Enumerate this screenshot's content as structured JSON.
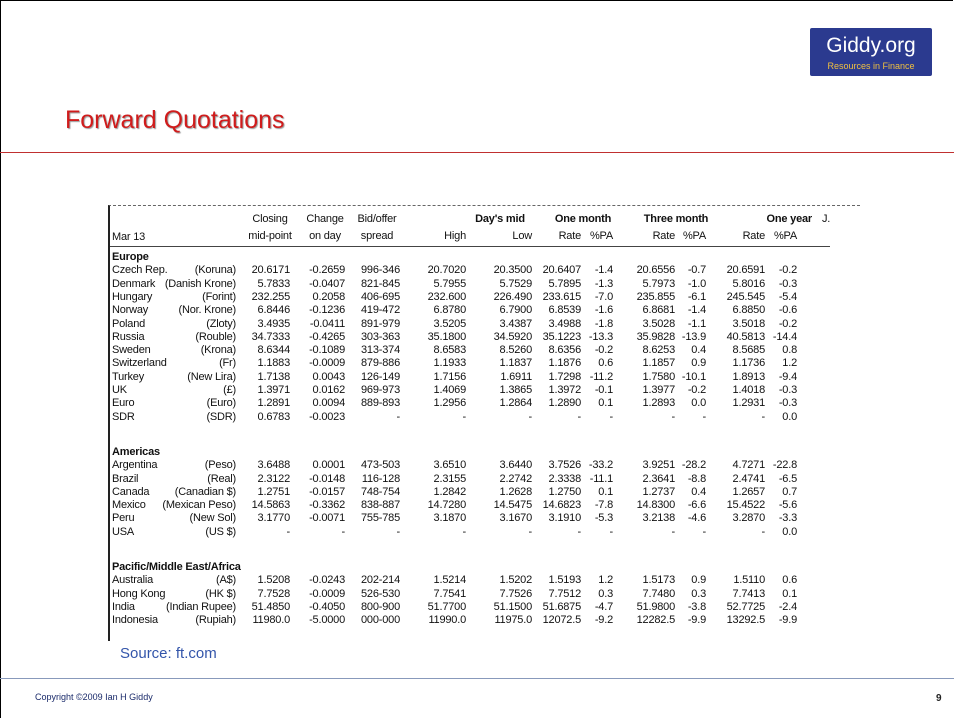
{
  "logo": {
    "name": "Giddy.org",
    "tagline": "Resources in Finance"
  },
  "title": "Forward Quotations",
  "table": {
    "date": "Mar 13",
    "header_top": [
      "Closing",
      "Change",
      "Bid/offer",
      "Day's mid",
      "One month",
      "Three month",
      "One year",
      "J."
    ],
    "header_bottom": [
      "mid-point",
      "on day",
      "spread",
      "High",
      "Low",
      "Rate",
      "%PA",
      "Rate",
      "%PA",
      "Rate",
      "%PA"
    ],
    "groups": [
      {
        "name": "Europe",
        "rows": [
          [
            "Czech Rep.",
            "(Koruna)",
            "20.6171",
            "-0.2659",
            "996-346",
            "20.7020",
            "20.3500",
            "20.6407",
            "-1.4",
            "20.6556",
            "-0.7",
            "20.6591",
            "-0.2"
          ],
          [
            "Denmark",
            "(Danish Krone)",
            "5.7833",
            "-0.0407",
            "821-845",
            "5.7955",
            "5.7529",
            "5.7895",
            "-1.3",
            "5.7973",
            "-1.0",
            "5.8016",
            "-0.3"
          ],
          [
            "Hungary",
            "(Forint)",
            "232.255",
            "0.2058",
            "406-695",
            "232.600",
            "226.490",
            "233.615",
            "-7.0",
            "235.855",
            "-6.1",
            "245.545",
            "-5.4"
          ],
          [
            "Norway",
            "(Nor. Krone)",
            "6.8446",
            "-0.1236",
            "419-472",
            "6.8780",
            "6.7900",
            "6.8539",
            "-1.6",
            "6.8681",
            "-1.4",
            "6.8850",
            "-0.6"
          ],
          [
            "Poland",
            "(Zloty)",
            "3.4935",
            "-0.0411",
            "891-979",
            "3.5205",
            "3.4387",
            "3.4988",
            "-1.8",
            "3.5028",
            "-1.1",
            "3.5018",
            "-0.2"
          ],
          [
            "Russia",
            "(Rouble)",
            "34.7333",
            "-0.4265",
            "303-363",
            "35.1800",
            "34.5920",
            "35.1223",
            "-13.3",
            "35.9828",
            "-13.9",
            "40.5813",
            "-14.4"
          ],
          [
            "Sweden",
            "(Krona)",
            "8.6344",
            "-0.1089",
            "313-374",
            "8.6583",
            "8.5260",
            "8.6356",
            "-0.2",
            "8.6253",
            "0.4",
            "8.5685",
            "0.8"
          ],
          [
            "Switzerland",
            "(Fr)",
            "1.1883",
            "-0.0009",
            "879-886",
            "1.1933",
            "1.1837",
            "1.1876",
            "0.6",
            "1.1857",
            "0.9",
            "1.1736",
            "1.2"
          ],
          [
            "Turkey",
            "(New Lira)",
            "1.7138",
            "0.0043",
            "126-149",
            "1.7156",
            "1.6911",
            "1.7298",
            "-11.2",
            "1.7580",
            "-10.1",
            "1.8913",
            "-9.4"
          ],
          [
            "UK",
            "(£)",
            "1.3971",
            "0.0162",
            "969-973",
            "1.4069",
            "1.3865",
            "1.3972",
            "-0.1",
            "1.3977",
            "-0.2",
            "1.4018",
            "-0.3"
          ],
          [
            "Euro",
            "(Euro)",
            "1.2891",
            "0.0094",
            "889-893",
            "1.2956",
            "1.2864",
            "1.2890",
            "0.1",
            "1.2893",
            "0.0",
            "1.2931",
            "-0.3"
          ],
          [
            "SDR",
            "(SDR)",
            "0.6783",
            "-0.0023",
            "-",
            "-",
            "-",
            "-",
            "-",
            "-",
            "-",
            "-",
            "0.0"
          ]
        ]
      },
      {
        "name": "Americas",
        "rows": [
          [
            "Argentina",
            "(Peso)",
            "3.6488",
            "0.0001",
            "473-503",
            "3.6510",
            "3.6440",
            "3.7526",
            "-33.2",
            "3.9251",
            "-28.2",
            "4.7271",
            "-22.8"
          ],
          [
            "Brazil",
            "(Real)",
            "2.3122",
            "-0.0148",
            "116-128",
            "2.3155",
            "2.2742",
            "2.3338",
            "-11.1",
            "2.3641",
            "-8.8",
            "2.4741",
            "-6.5"
          ],
          [
            "Canada",
            "(Canadian $)",
            "1.2751",
            "-0.0157",
            "748-754",
            "1.2842",
            "1.2628",
            "1.2750",
            "0.1",
            "1.2737",
            "0.4",
            "1.2657",
            "0.7"
          ],
          [
            "Mexico",
            "(Mexican Peso)",
            "14.5863",
            "-0.3362",
            "838-887",
            "14.7280",
            "14.5475",
            "14.6823",
            "-7.8",
            "14.8300",
            "-6.6",
            "15.4522",
            "-5.6"
          ],
          [
            "Peru",
            "(New Sol)",
            "3.1770",
            "-0.0071",
            "755-785",
            "3.1870",
            "3.1670",
            "3.1910",
            "-5.3",
            "3.2138",
            "-4.6",
            "3.2870",
            "-3.3"
          ],
          [
            "USA",
            "(US $)",
            "-",
            "-",
            "-",
            "-",
            "-",
            "-",
            "-",
            "-",
            "-",
            "-",
            "0.0"
          ]
        ]
      },
      {
        "name": "Pacific/Middle East/Africa",
        "rows": [
          [
            "Australia",
            "(A$)",
            "1.5208",
            "-0.0243",
            "202-214",
            "1.5214",
            "1.5202",
            "1.5193",
            "1.2",
            "1.5173",
            "0.9",
            "1.5110",
            "0.6"
          ],
          [
            "Hong Kong",
            "(HK $)",
            "7.7528",
            "-0.0009",
            "526-530",
            "7.7541",
            "7.7526",
            "7.7512",
            "0.3",
            "7.7480",
            "0.3",
            "7.7413",
            "0.1"
          ],
          [
            "India",
            "(Indian Rupee)",
            "51.4850",
            "-0.4050",
            "800-900",
            "51.7700",
            "51.1500",
            "51.6875",
            "-4.7",
            "51.9800",
            "-3.8",
            "52.7725",
            "-2.4"
          ],
          [
            "Indonesia",
            "(Rupiah)",
            "11980.0",
            "-5.0000",
            "000-000",
            "11990.0",
            "11975.0",
            "12072.5",
            "-9.2",
            "12282.5",
            "-9.9",
            "13292.5",
            "-9.9"
          ]
        ]
      }
    ]
  },
  "source": "Source: ft.com",
  "footer": {
    "copyright": "Copyright ©2009 Ian H Giddy",
    "page": "9"
  }
}
